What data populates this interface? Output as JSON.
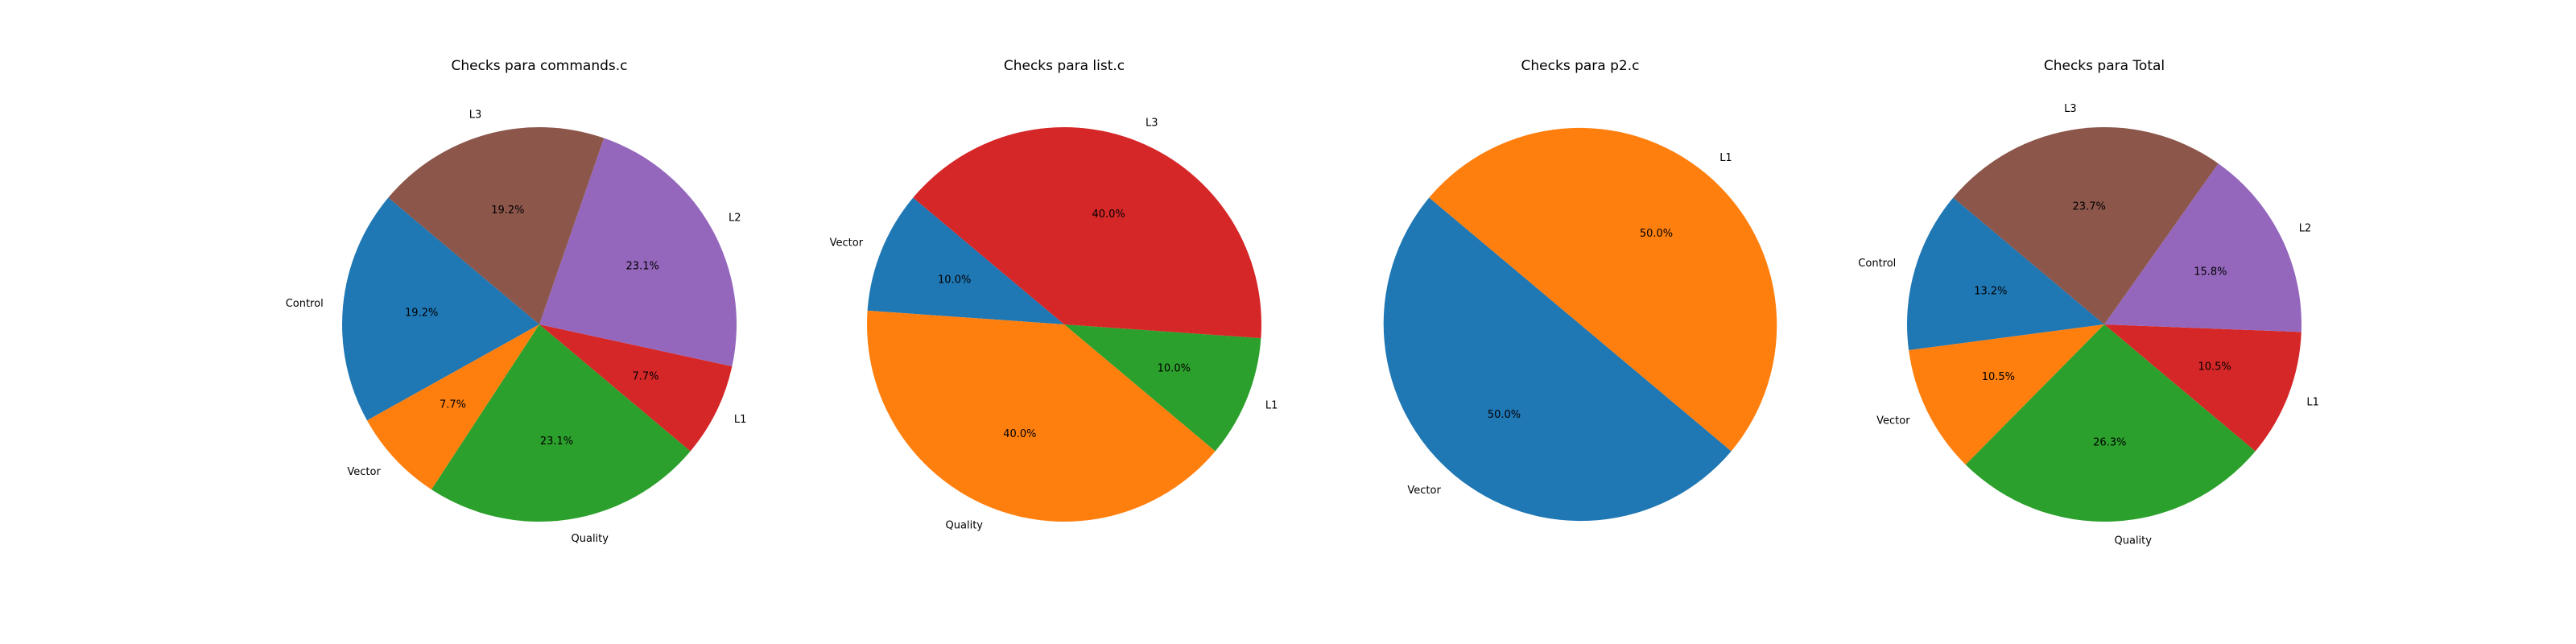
{
  "chart_data": [
    {
      "type": "pie",
      "title": "Checks para commands.c",
      "slices": [
        {
          "label": "Control",
          "value": 19.2,
          "pct_label": "19.2%",
          "color": "#1f77b4"
        },
        {
          "label": "Vector",
          "value": 7.7,
          "pct_label": "7.7%",
          "color": "#ff7f0e"
        },
        {
          "label": "Quality",
          "value": 23.1,
          "pct_label": "23.1%",
          "color": "#2ca02c"
        },
        {
          "label": "L1",
          "value": 7.7,
          "pct_label": "7.7%",
          "color": "#d62728"
        },
        {
          "label": "L2",
          "value": 23.1,
          "pct_label": "23.1%",
          "color": "#9467bd"
        },
        {
          "label": "L3",
          "value": 19.2,
          "pct_label": "19.2%",
          "color": "#8c564b"
        }
      ]
    },
    {
      "type": "pie",
      "title": "Checks para list.c",
      "slices": [
        {
          "label": "Vector",
          "value": 10.0,
          "pct_label": "10.0%",
          "color": "#1f77b4"
        },
        {
          "label": "Quality",
          "value": 40.0,
          "pct_label": "40.0%",
          "color": "#ff7f0e"
        },
        {
          "label": "L1",
          "value": 10.0,
          "pct_label": "10.0%",
          "color": "#2ca02c"
        },
        {
          "label": "L3",
          "value": 40.0,
          "pct_label": "40.0%",
          "color": "#d62728"
        }
      ]
    },
    {
      "type": "pie",
      "title": "Checks para p2.c",
      "slices": [
        {
          "label": "Vector",
          "value": 50.0,
          "pct_label": "50.0%",
          "color": "#1f77b4"
        },
        {
          "label": "L1",
          "value": 50.0,
          "pct_label": "50.0%",
          "color": "#ff7f0e"
        }
      ]
    },
    {
      "type": "pie",
      "title": "Checks para Total",
      "slices": [
        {
          "label": "Control",
          "value": 13.2,
          "pct_label": "13.2%",
          "color": "#1f77b4"
        },
        {
          "label": "Vector",
          "value": 10.5,
          "pct_label": "10.5%",
          "color": "#ff7f0e"
        },
        {
          "label": "Quality",
          "value": 26.3,
          "pct_label": "26.3%",
          "color": "#2ca02c"
        },
        {
          "label": "L1",
          "value": 10.5,
          "pct_label": "10.5%",
          "color": "#d62728"
        },
        {
          "label": "L2",
          "value": 15.8,
          "pct_label": "15.8%",
          "color": "#9467bd"
        },
        {
          "label": "L3",
          "value": 23.7,
          "pct_label": "23.7%",
          "color": "#8c564b"
        }
      ]
    }
  ]
}
